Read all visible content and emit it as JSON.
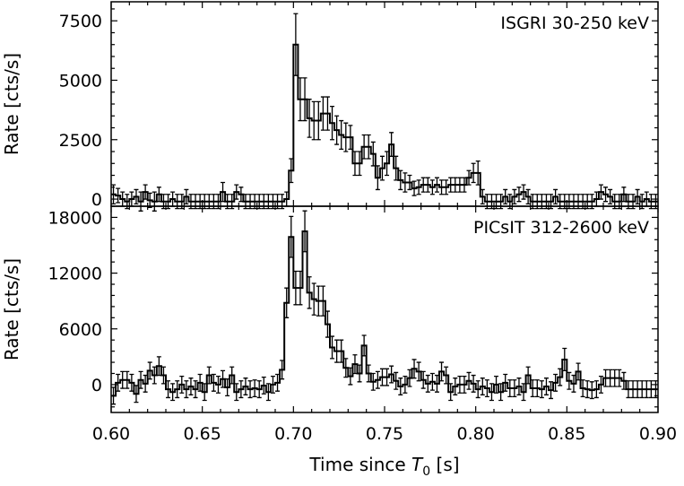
{
  "figure": {
    "xlabel_prefix": "Time since ",
    "xlabel_symbol": "T",
    "xlabel_subscript": "0",
    "xlabel_suffix": " [s]"
  },
  "chart_data": [
    {
      "type": "line",
      "style": "step-histogram with error bars",
      "label": "ISGRI 30-250 keV",
      "label_position": "top-right",
      "ylabel": "Rate [cts/s]",
      "xlim": [
        0.6,
        0.9
      ],
      "ylim": [
        -300,
        8300
      ],
      "yticks": [
        0,
        2500,
        5000,
        7500
      ],
      "ytick_labels": [
        "0",
        "2500",
        "5000",
        "7500"
      ],
      "grid": false,
      "color": "#000000",
      "bin_width": 0.0025,
      "x": [
        0.60125,
        0.60375,
        0.60625,
        0.60875,
        0.61125,
        0.61375,
        0.61625,
        0.61875,
        0.62125,
        0.62375,
        0.62625,
        0.62875,
        0.63125,
        0.63375,
        0.63625,
        0.63875,
        0.64125,
        0.64375,
        0.64625,
        0.64875,
        0.65125,
        0.65375,
        0.65625,
        0.65875,
        0.66125,
        0.66375,
        0.66625,
        0.66875,
        0.67125,
        0.67375,
        0.67625,
        0.67875,
        0.68125,
        0.68375,
        0.68625,
        0.68875,
        0.69125,
        0.69375,
        0.69625,
        0.69875,
        0.70125,
        0.70375,
        0.70625,
        0.70875,
        0.71125,
        0.71375,
        0.71625,
        0.71875,
        0.72125,
        0.72375,
        0.72625,
        0.72875,
        0.73125,
        0.73375,
        0.73625,
        0.73875,
        0.74125,
        0.74375,
        0.74625,
        0.74875,
        0.75125,
        0.75375,
        0.75625,
        0.75875,
        0.76125,
        0.76375,
        0.76625,
        0.76875,
        0.77125,
        0.77375,
        0.77625,
        0.77875,
        0.78125,
        0.78375,
        0.78625,
        0.78875,
        0.79125,
        0.79375,
        0.79625,
        0.79875,
        0.80125,
        0.80375,
        0.80625,
        0.80875,
        0.81125,
        0.81375,
        0.81625,
        0.81875,
        0.82125,
        0.82375,
        0.82625,
        0.82875,
        0.83125,
        0.83375,
        0.83625,
        0.83875,
        0.84125,
        0.84375,
        0.84625,
        0.84875,
        0.85125,
        0.85375,
        0.85625,
        0.85875,
        0.86125,
        0.86375,
        0.86625,
        0.86875,
        0.87125,
        0.87375,
        0.87625,
        0.87875,
        0.88125,
        0.88375,
        0.88625,
        0.88875,
        0.89125,
        0.89375,
        0.89625,
        0.89875
      ],
      "y": [
        200,
        150,
        0,
        -100,
        0,
        100,
        -100,
        300,
        -50,
        -100,
        200,
        -100,
        -100,
        0,
        -100,
        -100,
        100,
        -100,
        -100,
        -100,
        -100,
        -100,
        -100,
        -100,
        300,
        -100,
        -100,
        300,
        200,
        -100,
        -100,
        -100,
        -100,
        -100,
        -100,
        -100,
        -100,
        -100,
        0,
        1200,
        6500,
        4200,
        4200,
        3400,
        3300,
        3300,
        3600,
        3600,
        3200,
        2900,
        2700,
        2600,
        2600,
        1500,
        1500,
        2200,
        2200,
        1900,
        900,
        1300,
        1500,
        2300,
        1300,
        800,
        700,
        700,
        450,
        500,
        600,
        600,
        500,
        600,
        500,
        500,
        600,
        600,
        600,
        600,
        900,
        1100,
        1100,
        100,
        -100,
        -100,
        -100,
        -100,
        100,
        -100,
        100,
        200,
        300,
        100,
        -100,
        -100,
        -100,
        -100,
        -100,
        100,
        -100,
        -100,
        -100,
        -100,
        -100,
        -100,
        -100,
        -100,
        0,
        300,
        200,
        100,
        -100,
        -100,
        200,
        -100,
        -100,
        100,
        -100,
        0,
        -100,
        -100
      ],
      "yerr": [
        400,
        300,
        300,
        300,
        300,
        300,
        400,
        300,
        300,
        400,
        300,
        300,
        300,
        300,
        300,
        300,
        300,
        300,
        300,
        300,
        300,
        300,
        300,
        300,
        400,
        300,
        300,
        300,
        300,
        300,
        300,
        300,
        300,
        300,
        300,
        300,
        300,
        300,
        300,
        500,
        1300,
        900,
        900,
        800,
        800,
        800,
        700,
        700,
        700,
        600,
        600,
        600,
        500,
        500,
        500,
        500,
        500,
        500,
        500,
        500,
        500,
        500,
        500,
        400,
        400,
        300,
        300,
        300,
        300,
        300,
        300,
        300,
        300,
        300,
        300,
        300,
        300,
        300,
        300,
        400,
        500,
        300,
        300,
        300,
        300,
        300,
        300,
        300,
        300,
        300,
        300,
        300,
        300,
        300,
        300,
        300,
        300,
        300,
        300,
        300,
        300,
        300,
        300,
        300,
        300,
        300,
        300,
        300,
        300,
        300,
        300,
        300,
        300,
        300,
        300,
        300,
        300,
        300,
        300,
        300
      ]
    },
    {
      "type": "line",
      "style": "step-histogram with error bars",
      "label": "PICsIT 312-2600 keV",
      "label_position": "top-right",
      "ylabel": "Rate [cts/s]",
      "xlabel": "Time since T0 [s]",
      "xlim": [
        0.6,
        0.9
      ],
      "ylim": [
        -3000,
        19200
      ],
      "xticks": [
        0.6,
        0.65,
        0.7,
        0.75,
        0.8,
        0.85,
        0.9
      ],
      "xtick_labels": [
        "0.60",
        "0.65",
        "0.70",
        "0.75",
        "0.80",
        "0.85",
        "0.90"
      ],
      "yticks": [
        0,
        6000,
        12000,
        18000
      ],
      "ytick_labels": [
        "0",
        "6000",
        "12000",
        "18000"
      ],
      "grid": false,
      "color": "#000000",
      "bin_width": 0.0025,
      "x": [
        0.60125,
        0.60375,
        0.60625,
        0.60875,
        0.61125,
        0.61375,
        0.61625,
        0.61875,
        0.62125,
        0.62375,
        0.62625,
        0.62875,
        0.63125,
        0.63375,
        0.63625,
        0.63875,
        0.64125,
        0.64375,
        0.64625,
        0.64875,
        0.65125,
        0.65375,
        0.65625,
        0.65875,
        0.66125,
        0.66375,
        0.66625,
        0.66875,
        0.67125,
        0.67375,
        0.67625,
        0.67875,
        0.68125,
        0.68375,
        0.68625,
        0.68875,
        0.69125,
        0.69375,
        0.69625,
        0.69875,
        0.70125,
        0.70375,
        0.70625,
        0.70875,
        0.71125,
        0.71375,
        0.71625,
        0.71875,
        0.72125,
        0.72375,
        0.72625,
        0.72875,
        0.73125,
        0.73375,
        0.73625,
        0.73875,
        0.74125,
        0.74375,
        0.74625,
        0.74875,
        0.75125,
        0.75375,
        0.75625,
        0.75875,
        0.76125,
        0.76375,
        0.76625,
        0.76875,
        0.77125,
        0.77375,
        0.77625,
        0.77875,
        0.78125,
        0.78375,
        0.78625,
        0.78875,
        0.79125,
        0.79375,
        0.79625,
        0.79875,
        0.80125,
        0.80375,
        0.80625,
        0.80875,
        0.81125,
        0.81375,
        0.81625,
        0.81875,
        0.82125,
        0.82375,
        0.82625,
        0.82875,
        0.83125,
        0.83375,
        0.83625,
        0.83875,
        0.84125,
        0.84375,
        0.84625,
        0.84875,
        0.85125,
        0.85375,
        0.85625,
        0.85875,
        0.86125,
        0.86375,
        0.86625,
        0.86875,
        0.87125,
        0.87375,
        0.87625,
        0.87875,
        0.88125,
        0.88375,
        0.88625,
        0.88875,
        0.89125,
        0.89375,
        0.89625,
        0.89875
      ],
      "y": [
        -1200,
        200,
        500,
        500,
        200,
        -1000,
        500,
        100,
        1500,
        1000,
        2000,
        1000,
        -500,
        -800,
        -500,
        0,
        -500,
        -200,
        -500,
        200,
        -800,
        1000,
        200,
        0,
        600,
        -300,
        1000,
        -800,
        -500,
        -200,
        -500,
        -400,
        -500,
        -100,
        -800,
        0,
        200,
        1600,
        8800,
        15900,
        10400,
        10400,
        16500,
        9900,
        9200,
        9000,
        9000,
        6500,
        4000,
        3600,
        3600,
        1800,
        900,
        2200,
        1200,
        4200,
        1200,
        300,
        500,
        800,
        800,
        1100,
        400,
        -200,
        0,
        700,
        1700,
        1400,
        500,
        100,
        300,
        100,
        1400,
        1000,
        -800,
        -200,
        0,
        0,
        400,
        100,
        -500,
        -200,
        -400,
        -800,
        0,
        -800,
        200,
        -400,
        -400,
        -200,
        -800,
        1000,
        -400,
        -400,
        -500,
        -200,
        -600,
        200,
        800,
        2700,
        400,
        100,
        1400,
        -400,
        -500,
        -600,
        -500,
        0,
        700,
        700,
        700,
        700,
        400,
        -500,
        -500,
        -500,
        -500,
        -500,
        -500,
        -500
      ],
      "yerr": [
        900,
        900,
        900,
        900,
        900,
        900,
        900,
        900,
        900,
        900,
        1000,
        900,
        900,
        900,
        900,
        900,
        900,
        900,
        900,
        900,
        900,
        900,
        900,
        900,
        900,
        900,
        900,
        900,
        900,
        900,
        900,
        900,
        900,
        900,
        900,
        900,
        900,
        1000,
        1600,
        2200,
        1800,
        1800,
        2200,
        1700,
        1700,
        1600,
        1600,
        1400,
        1200,
        1200,
        1200,
        1000,
        900,
        1000,
        900,
        1100,
        900,
        900,
        900,
        900,
        900,
        900,
        900,
        900,
        900,
        900,
        1000,
        1000,
        900,
        900,
        900,
        900,
        1000,
        900,
        900,
        900,
        900,
        900,
        900,
        900,
        900,
        900,
        900,
        900,
        900,
        900,
        900,
        900,
        900,
        900,
        900,
        900,
        900,
        900,
        900,
        900,
        900,
        900,
        900,
        1200,
        900,
        900,
        900,
        900,
        900,
        900,
        900,
        900,
        900,
        900,
        900,
        900,
        900,
        900,
        900,
        900,
        900,
        900,
        900,
        900
      ]
    }
  ]
}
